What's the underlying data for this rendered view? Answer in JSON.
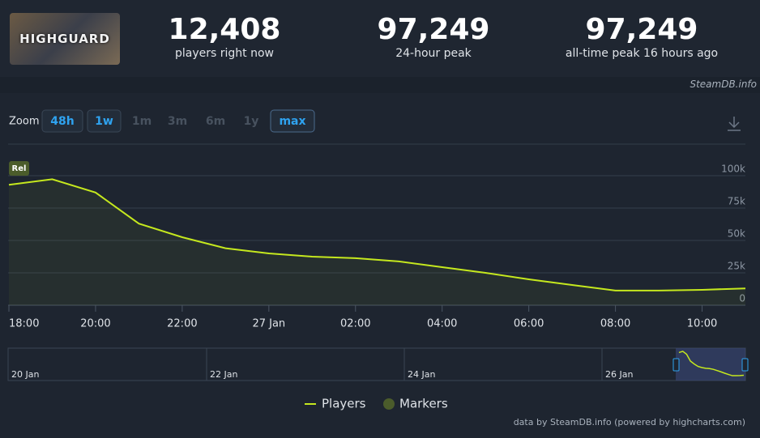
{
  "header": {
    "logo_text": "HIGHGUARD",
    "stats": [
      {
        "value": "12,408",
        "label": "players right now"
      },
      {
        "value": "97,249",
        "label": "24-hour peak"
      },
      {
        "value": "97,249",
        "label": "all-time peak 16 hours ago"
      }
    ],
    "source": "SteamDB.info"
  },
  "zoom": {
    "label": "Zoom",
    "buttons": [
      {
        "text": "48h",
        "enabled": true
      },
      {
        "text": "1w",
        "enabled": true
      },
      {
        "text": "1m",
        "enabled": false
      },
      {
        "text": "3m",
        "enabled": false
      },
      {
        "text": "6m",
        "enabled": false
      },
      {
        "text": "1y",
        "enabled": false
      },
      {
        "text": "max",
        "enabled": true
      }
    ]
  },
  "chart_data": {
    "type": "line",
    "categories": [
      "18:00",
      null,
      "20:00",
      null,
      "22:00",
      null,
      "27 Jan",
      null,
      "02:00",
      null,
      "04:00",
      null,
      "06:00",
      null,
      "08:00",
      null,
      "10:00",
      null
    ],
    "series": [
      {
        "name": "Players",
        "color": "#c5e81e",
        "values": [
          93000,
          97249,
          87000,
          63000,
          52500,
          44000,
          40000,
          37500,
          36300,
          33800,
          29400,
          25000,
          20000,
          15600,
          11300,
          11300,
          11900,
          13000
        ]
      }
    ],
    "markers": {
      "name": "Markers",
      "color": "#4b5c2b",
      "labels": [
        "Rel"
      ]
    },
    "ylim": [
      0,
      100000
    ],
    "yticks": [
      0,
      {
        "value": 25000,
        "label": "25k"
      },
      {
        "value": 50000,
        "label": "50k"
      },
      {
        "value": 75000,
        "label": "75k"
      },
      {
        "value": 100000,
        "label": "100k"
      }
    ],
    "grid": true,
    "navigator": {
      "labels": [
        "20 Jan",
        "22 Jan",
        "24 Jan",
        "26 Jan"
      ]
    },
    "credits": "data by SteamDB.info (powered by highcharts.com)"
  }
}
